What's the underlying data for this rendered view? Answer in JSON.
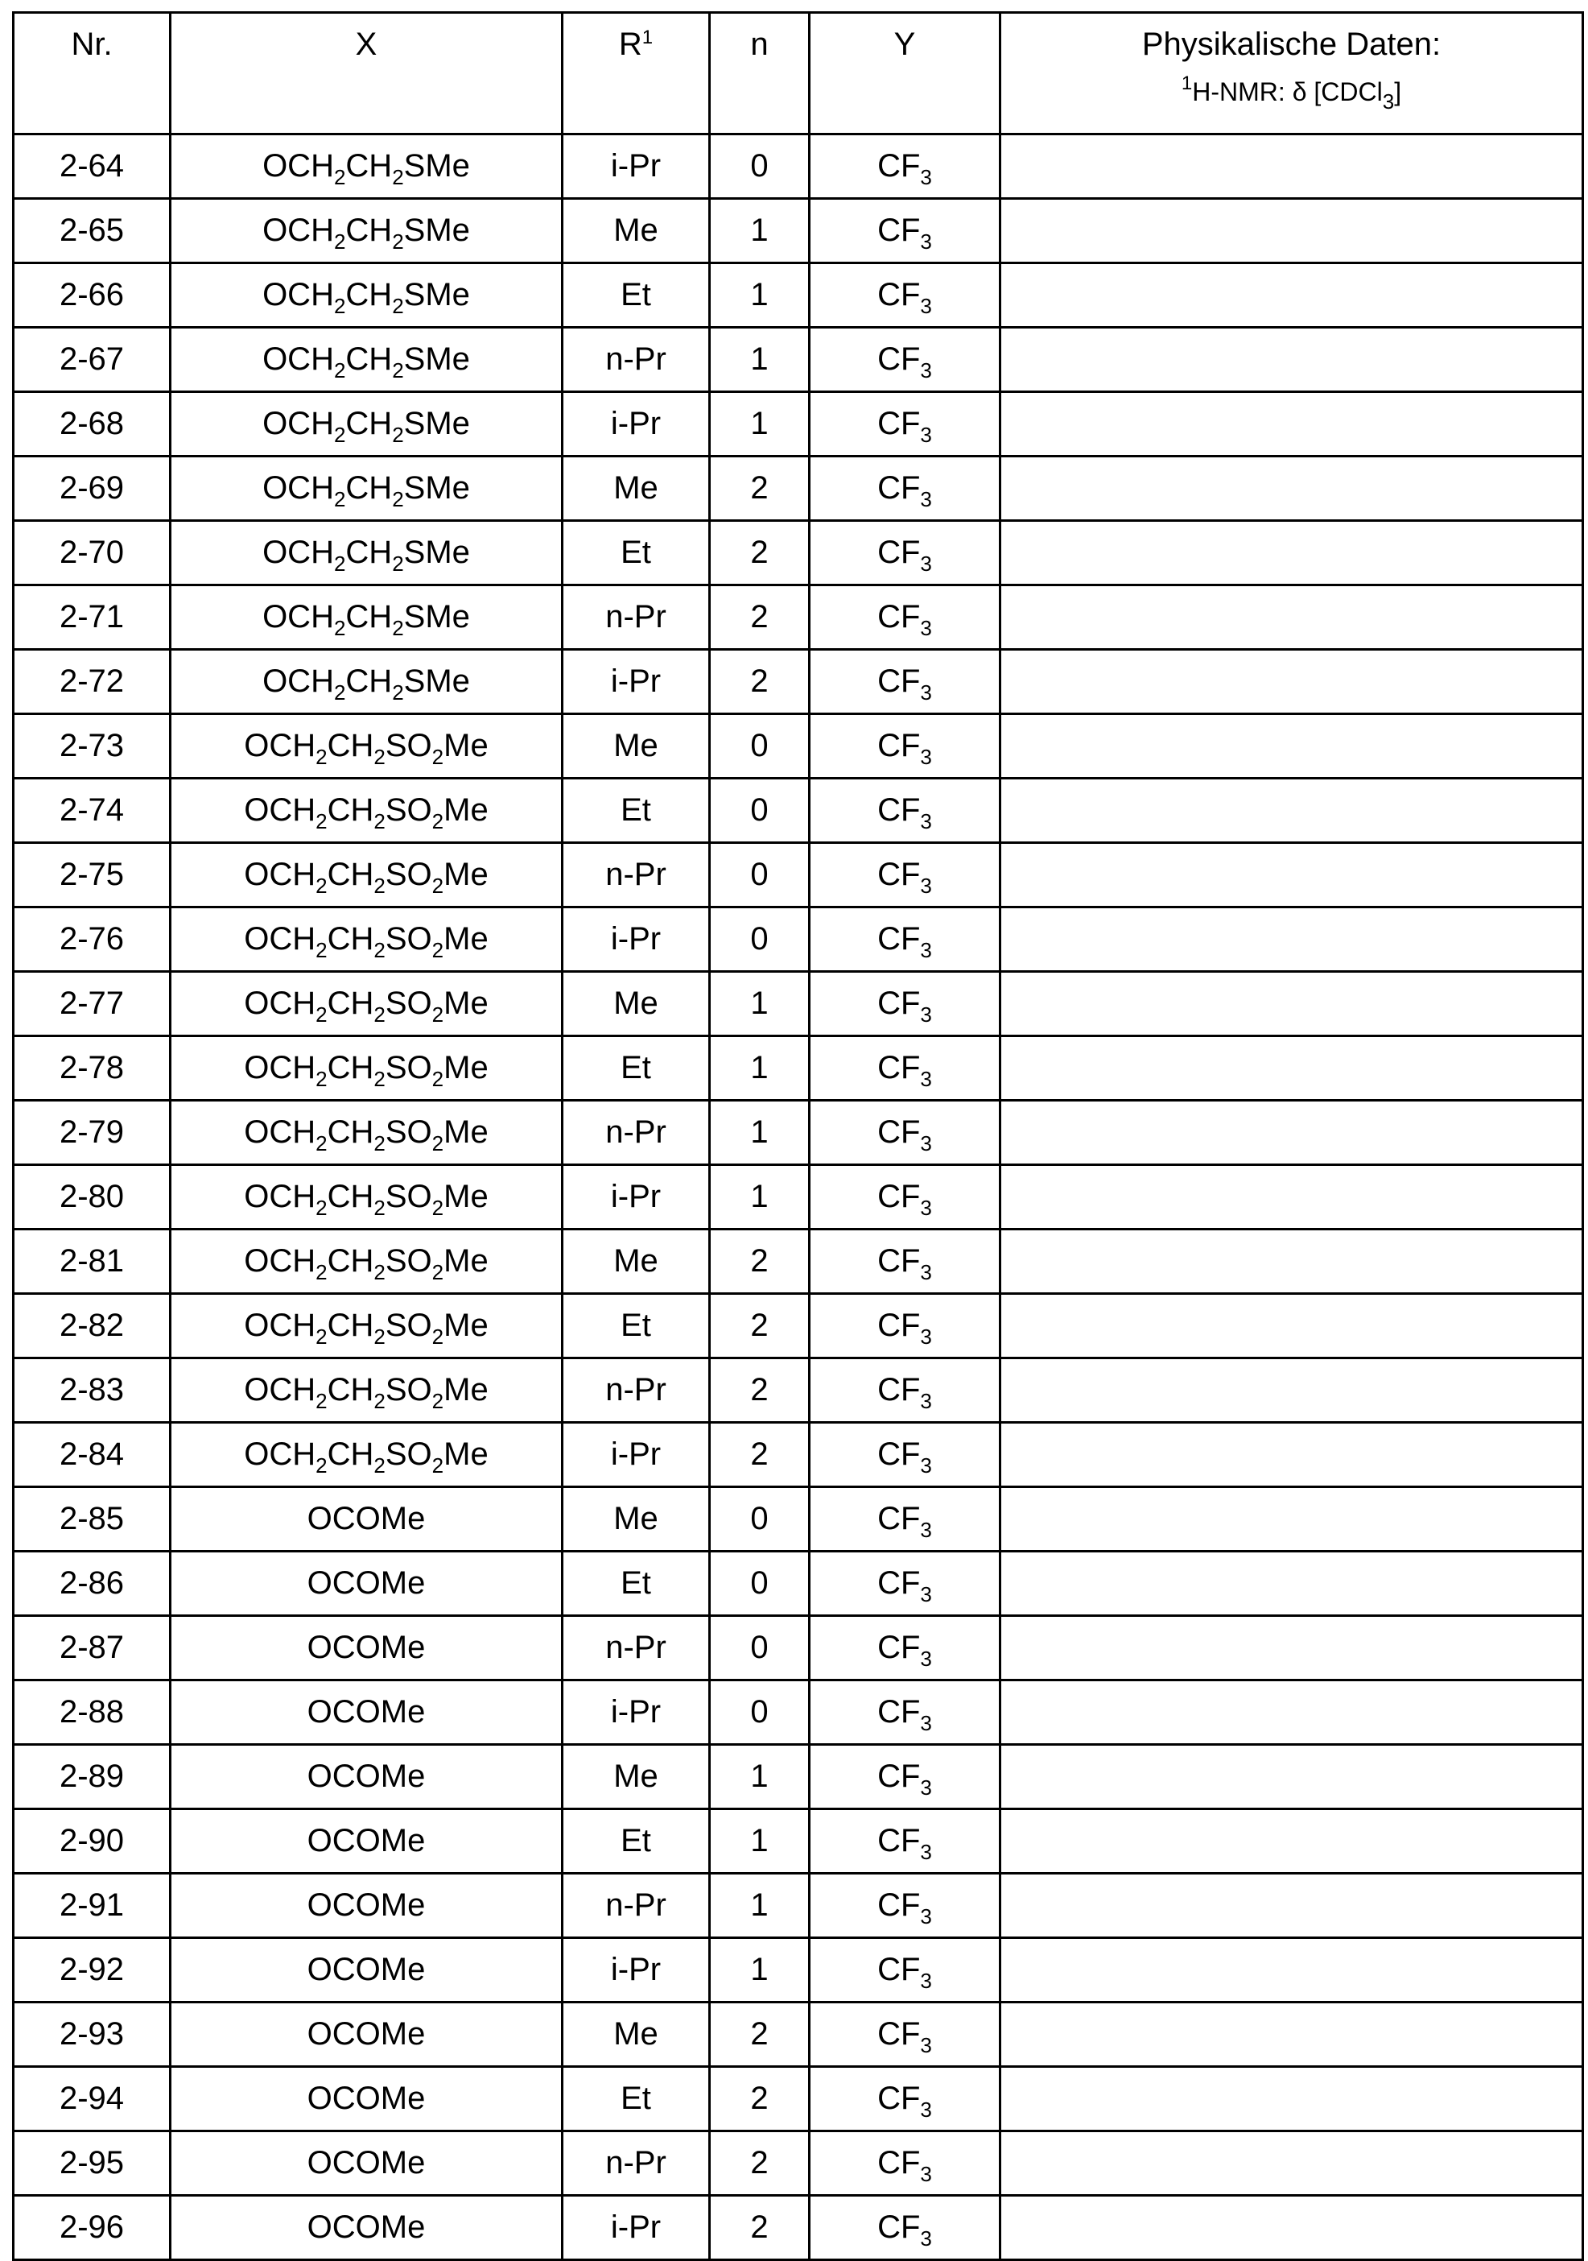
{
  "headers": {
    "nr": "Nr.",
    "x": "X",
    "r": "R",
    "r_sup": "1",
    "n": "n",
    "y": "Y",
    "phys": "Physikalische Daten:",
    "nmr_sup": "1",
    "nmr_a": "H-NMR: δ [CDCl",
    "nmr_sub": "3",
    "nmr_b": "]"
  },
  "rows": [
    [
      "2-64",
      "SMe",
      "i-Pr",
      "0"
    ],
    [
      "2-65",
      "SMe",
      "Me",
      "1"
    ],
    [
      "2-66",
      "SMe",
      "Et",
      "1"
    ],
    [
      "2-67",
      "SMe",
      "n-Pr",
      "1"
    ],
    [
      "2-68",
      "SMe",
      "i-Pr",
      "1"
    ],
    [
      "2-69",
      "SMe",
      "Me",
      "2"
    ],
    [
      "2-70",
      "SMe",
      "Et",
      "2"
    ],
    [
      "2-71",
      "SMe",
      "n-Pr",
      "2"
    ],
    [
      "2-72",
      "SMe",
      "i-Pr",
      "2"
    ],
    [
      "2-73",
      "SO2",
      "Me",
      "0"
    ],
    [
      "2-74",
      "SO2",
      "Et",
      "0"
    ],
    [
      "2-75",
      "SO2",
      "n-Pr",
      "0"
    ],
    [
      "2-76",
      "SO2",
      "i-Pr",
      "0"
    ],
    [
      "2-77",
      "SO2",
      "Me",
      "1"
    ],
    [
      "2-78",
      "SO2",
      "Et",
      "1"
    ],
    [
      "2-79",
      "SO2",
      "n-Pr",
      "1"
    ],
    [
      "2-80",
      "SO2",
      "i-Pr",
      "1"
    ],
    [
      "2-81",
      "SO2",
      "Me",
      "2"
    ],
    [
      "2-82",
      "SO2",
      "Et",
      "2"
    ],
    [
      "2-83",
      "SO2",
      "n-Pr",
      "2"
    ],
    [
      "2-84",
      "SO2",
      "i-Pr",
      "2"
    ],
    [
      "2-85",
      "OCOMe",
      "Me",
      "0"
    ],
    [
      "2-86",
      "OCOMe",
      "Et",
      "0"
    ],
    [
      "2-87",
      "OCOMe",
      "n-Pr",
      "0"
    ],
    [
      "2-88",
      "OCOMe",
      "i-Pr",
      "0"
    ],
    [
      "2-89",
      "OCOMe",
      "Me",
      "1"
    ],
    [
      "2-90",
      "OCOMe",
      "Et",
      "1"
    ],
    [
      "2-91",
      "OCOMe",
      "n-Pr",
      "1"
    ],
    [
      "2-92",
      "OCOMe",
      "i-Pr",
      "1"
    ],
    [
      "2-93",
      "OCOMe",
      "Me",
      "2"
    ],
    [
      "2-94",
      "OCOMe",
      "Et",
      "2"
    ],
    [
      "2-95",
      "OCOMe",
      "n-Pr",
      "2"
    ],
    [
      "2-96",
      "OCOMe",
      "i-Pr",
      "2"
    ]
  ],
  "x_formulas": {
    "SMe": [
      "OCH",
      "2",
      "CH",
      "2",
      "SMe"
    ],
    "SO2": [
      "OCH",
      "2",
      "CH",
      "2",
      "SO",
      "2",
      "Me"
    ],
    "OCOMe": [
      "OCOMe"
    ]
  },
  "y_formula": [
    "CF",
    "3"
  ],
  "phys_value": ""
}
